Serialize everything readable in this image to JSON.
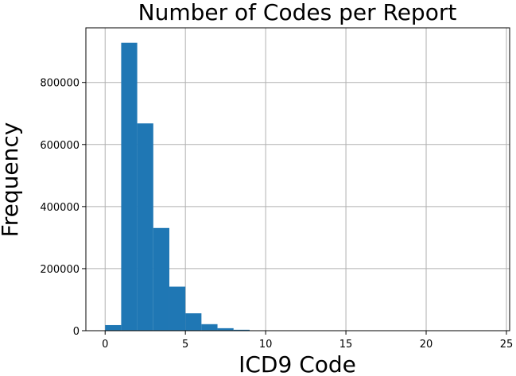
{
  "chart_data": {
    "type": "bar",
    "title": "Number of Codes per Report",
    "xlabel": "ICD9 Code",
    "ylabel": "Frequency",
    "xlim": [
      -1.2,
      25.2
    ],
    "ylim": [
      0,
      976000
    ],
    "xticks": [
      0,
      5,
      10,
      15,
      20,
      25
    ],
    "yticks": [
      0,
      200000,
      400000,
      600000,
      800000
    ],
    "grid": true,
    "color": "#1f77b4",
    "bins": [
      {
        "x0": 0.0,
        "x1": 1.0,
        "value": 18000
      },
      {
        "x0": 1.0,
        "x1": 2.0,
        "value": 928000
      },
      {
        "x0": 2.0,
        "x1": 3.0,
        "value": 668000
      },
      {
        "x0": 3.0,
        "x1": 4.0,
        "value": 331000
      },
      {
        "x0": 4.0,
        "x1": 5.0,
        "value": 142000
      },
      {
        "x0": 5.0,
        "x1": 6.0,
        "value": 56000
      },
      {
        "x0": 6.0,
        "x1": 7.0,
        "value": 21000
      },
      {
        "x0": 7.0,
        "x1": 8.0,
        "value": 8000
      },
      {
        "x0": 8.0,
        "x1": 9.0,
        "value": 3000
      },
      {
        "x0": 9.0,
        "x1": 10.0,
        "value": 1000
      },
      {
        "x0": 10.0,
        "x1": 11.0,
        "value": 500
      }
    ]
  }
}
